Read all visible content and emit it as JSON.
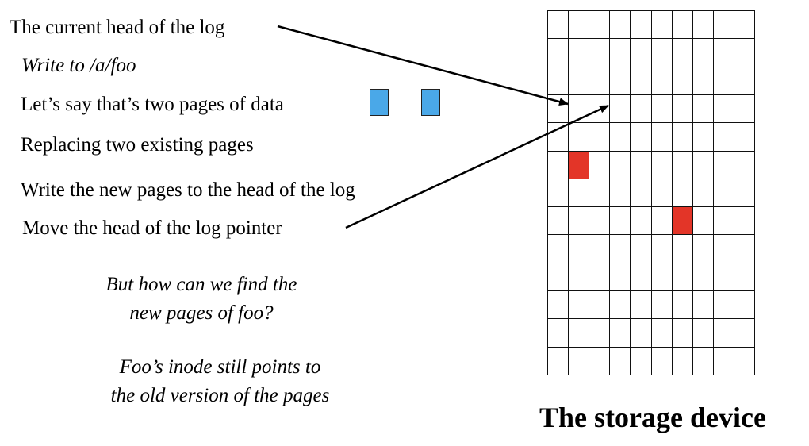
{
  "colors": {
    "data_page": "#4aa8e8",
    "old_page": "#e33528",
    "grid_line": "#111111",
    "arrow": "#000000"
  },
  "lines": {
    "head_of_log": "The current head of the log",
    "write_foo": "Write to /a/foo",
    "two_pages": "Let’s say that’s two pages of data",
    "replacing": "Replacing two existing pages",
    "write_new_pages": "Write the new pages to the head of the log",
    "move_pointer": "Move the head of the log pointer"
  },
  "notes": {
    "question_line1": "But how can we find the",
    "question_line2": "new pages of foo?",
    "inode_line1": "Foo’s inode still points to",
    "inode_line2": "the old version of the pages"
  },
  "storage": {
    "label": "The storage device",
    "rows": 13,
    "cols": 10,
    "old_pages": [
      {
        "row": 5,
        "col": 1
      },
      {
        "row": 7,
        "col": 6
      }
    ]
  }
}
